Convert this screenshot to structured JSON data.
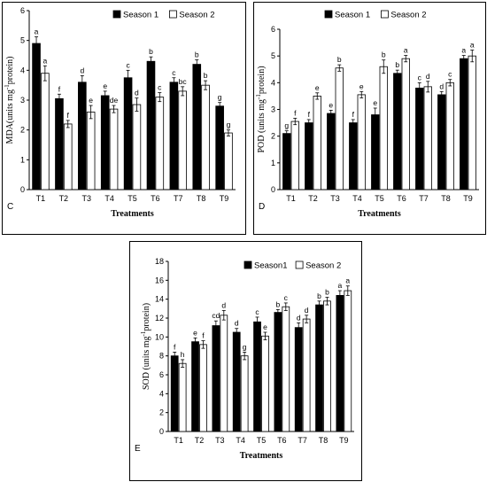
{
  "chart_data": [
    {
      "panel": "C",
      "type": "bar",
      "categories": [
        "T1",
        "T2",
        "T3",
        "T4",
        "T5",
        "T6",
        "T7",
        "T8",
        "T9"
      ],
      "series": [
        {
          "name": "Season 1",
          "color": "#000000",
          "values": [
            4.9,
            3.05,
            3.6,
            3.15,
            3.75,
            4.3,
            3.6,
            4.2,
            2.8
          ],
          "errors": [
            0.22,
            0.15,
            0.22,
            0.15,
            0.25,
            0.15,
            0.15,
            0.15,
            0.12
          ],
          "letters": [
            "a",
            "f",
            "d",
            "e",
            "c",
            "b",
            "c",
            "b",
            "g"
          ]
        },
        {
          "name": "Season 2",
          "color": "#ffffff",
          "values": [
            3.9,
            2.2,
            2.6,
            2.7,
            2.85,
            3.1,
            3.3,
            3.5,
            1.9
          ],
          "errors": [
            0.25,
            0.12,
            0.22,
            0.12,
            0.22,
            0.15,
            0.15,
            0.15,
            0.1
          ],
          "letters": [
            "a",
            "f",
            "e",
            "de",
            "d",
            "c",
            "bc",
            "b",
            "g"
          ]
        }
      ],
      "xlabel": "Treatments",
      "ylabel": "MDA(units mg⁻¹protein)",
      "ylim": [
        0,
        6
      ],
      "yticks": [
        0,
        1,
        2,
        3,
        4,
        5,
        6
      ],
      "legend": "top-right",
      "grid": false
    },
    {
      "panel": "D",
      "type": "bar",
      "categories": [
        "T1",
        "T2",
        "T3",
        "T4",
        "T5",
        "T6",
        "T7",
        "T8",
        "T9"
      ],
      "series": [
        {
          "name": "Season 1",
          "color": "#000000",
          "values": [
            2.1,
            2.5,
            2.85,
            2.5,
            2.8,
            4.35,
            3.8,
            3.55,
            4.9
          ],
          "errors": [
            0.1,
            0.12,
            0.12,
            0.12,
            0.25,
            0.12,
            0.2,
            0.12,
            0.12
          ],
          "letters": [
            "g",
            "f",
            "e",
            "f",
            "e",
            "b",
            "c",
            "d",
            "a"
          ]
        },
        {
          "name": "Season 2",
          "color": "#ffffff",
          "values": [
            2.55,
            3.5,
            4.55,
            3.55,
            4.6,
            4.9,
            3.85,
            4.0,
            5.0
          ],
          "errors": [
            0.12,
            0.12,
            0.12,
            0.12,
            0.25,
            0.12,
            0.2,
            0.12,
            0.22
          ],
          "letters": [
            "f",
            "e",
            "b",
            "e",
            "b",
            "a",
            "d",
            "c",
            "a"
          ]
        }
      ],
      "xlabel": "Treatments",
      "ylabel": "POD (units mg⁻¹protein)",
      "ylim": [
        0,
        6
      ],
      "yticks": [
        0,
        1,
        2,
        3,
        4,
        5,
        6
      ],
      "legend": "top-right",
      "grid": false
    },
    {
      "panel": "E",
      "type": "bar",
      "categories": [
        "T1",
        "T2",
        "T3",
        "T4",
        "T5",
        "T6",
        "T7",
        "T8",
        "T9"
      ],
      "series": [
        {
          "name": "Season1",
          "color": "#000000",
          "values": [
            8.0,
            9.5,
            11.2,
            10.5,
            11.6,
            12.6,
            11.0,
            13.4,
            14.4
          ],
          "errors": [
            0.4,
            0.4,
            0.5,
            0.4,
            0.5,
            0.3,
            0.5,
            0.4,
            0.5
          ],
          "letters": [
            "f",
            "e",
            "cd",
            "d",
            "c",
            "b",
            "d",
            "b",
            "a"
          ]
        },
        {
          "name": "Season 2",
          "color": "#ffffff",
          "values": [
            7.2,
            9.2,
            12.3,
            8.0,
            10.1,
            13.2,
            11.9,
            13.8,
            14.9
          ],
          "errors": [
            0.4,
            0.4,
            0.5,
            0.4,
            0.4,
            0.4,
            0.4,
            0.4,
            0.5
          ],
          "letters": [
            "h",
            "f",
            "d",
            "g",
            "e",
            "c",
            "d",
            "b",
            "a"
          ]
        }
      ],
      "xlabel": "Treatments",
      "ylabel": "SOD (units mg⁻¹protein)",
      "ylim": [
        0,
        18
      ],
      "yticks": [
        0,
        2,
        4,
        6,
        8,
        10,
        12,
        14,
        16,
        18
      ],
      "legend": "top-right",
      "grid": false
    }
  ]
}
